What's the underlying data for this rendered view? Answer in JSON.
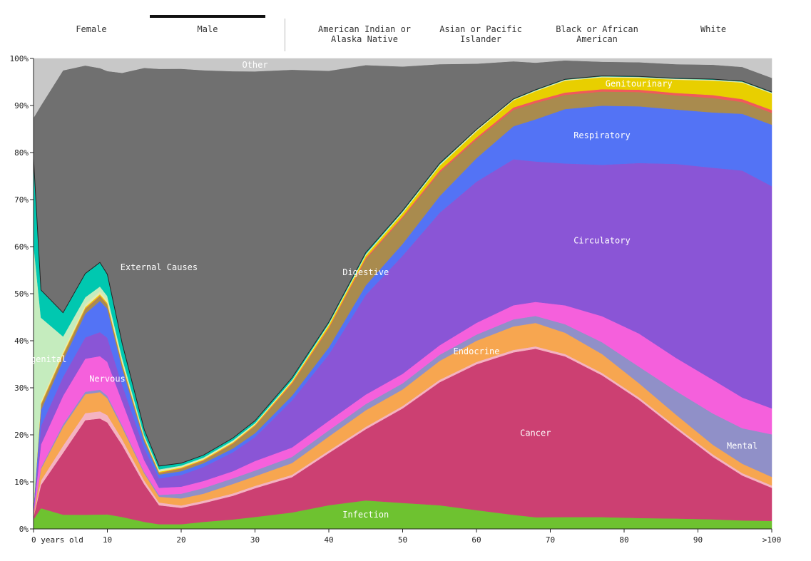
{
  "tabs": [
    {
      "label": "Female",
      "active": false
    },
    {
      "label": "Male",
      "active": true
    },
    {
      "label": "American Indian or\nAlaska Native",
      "active": false
    },
    {
      "label": "Asian or Pacific\nIslander",
      "active": false
    },
    {
      "label": "Black or African\nAmerican",
      "active": false
    },
    {
      "label": "White",
      "active": false
    }
  ],
  "chart_data": {
    "type": "area",
    "stacking": "percent",
    "xlabel": "",
    "ylabel": "",
    "x_ticks": [
      "0 years old",
      "10",
      "20",
      "30",
      "40",
      "50",
      "60",
      "70",
      "80",
      "90",
      ">100"
    ],
    "y_ticks": [
      "0%",
      "10%",
      "20%",
      "30%",
      "40%",
      "50%",
      "60%",
      "70%",
      "80%",
      "90%",
      "100%"
    ],
    "ylim": [
      0,
      100
    ],
    "xlim": [
      0,
      100
    ],
    "x": [
      0,
      1,
      4,
      7,
      9,
      10,
      12,
      15,
      17,
      20,
      23,
      27,
      30,
      35,
      40,
      45,
      50,
      55,
      60,
      65,
      68,
      72,
      77,
      82,
      87,
      92,
      96,
      100
    ],
    "series": [
      {
        "name": "Infection",
        "color": "#6ec230",
        "values": [
          2,
          4.5,
          3,
          3,
          3,
          3,
          2.5,
          1.5,
          1,
          1,
          1.5,
          2,
          2.5,
          3.5,
          5,
          6,
          5.5,
          5,
          4,
          3,
          2.5,
          2.5,
          2.5,
          2.3,
          2.2,
          2,
          1.8,
          1.7
        ]
      },
      {
        "name": "Cancer",
        "color": "#cc4072",
        "values": [
          0.5,
          5,
          13,
          20,
          20,
          19,
          15,
          8,
          4,
          3.5,
          4,
          5,
          6,
          7.5,
          11,
          15,
          20,
          26,
          31,
          34.5,
          36,
          34,
          30,
          25,
          19,
          13,
          9.5,
          7
        ]
      },
      {
        "name": "",
        "color": "#f4b3c2",
        "values": [
          0.2,
          1,
          1.5,
          1.5,
          1.5,
          1.5,
          1.2,
          0.8,
          0.6,
          0.5,
          0.5,
          0.5,
          0.5,
          0.5,
          0.5,
          0.5,
          0.5,
          0.5,
          0.5,
          0.5,
          0.5,
          0.5,
          0.5,
          0.5,
          0.5,
          0.5,
          0.5,
          0.5
        ]
      },
      {
        "name": "Endocrine",
        "color": "#f7a650",
        "values": [
          0.3,
          2.5,
          4,
          4,
          4,
          3.5,
          2.5,
          1.5,
          1.2,
          1.5,
          1.5,
          2,
          2,
          2.5,
          3,
          3.5,
          3.5,
          4,
          4.5,
          5,
          5,
          4.5,
          4,
          3,
          2.5,
          2,
          2,
          1.8
        ]
      },
      {
        "name": "Mental",
        "color": "#9090c8",
        "values": [
          0.1,
          0.3,
          0.5,
          0.5,
          0.5,
          0.5,
          0.4,
          0.3,
          0.4,
          1,
          1.2,
          1.2,
          1.2,
          1.3,
          1.3,
          1.3,
          1.3,
          1.3,
          1.3,
          1.5,
          1.5,
          1.8,
          2.5,
          3.5,
          5,
          6.5,
          7.5,
          9
        ]
      },
      {
        "name": "Nervous",
        "color": "#f560dc",
        "values": [
          0.5,
          5,
          6,
          7,
          7,
          7,
          5,
          2.5,
          1.5,
          1.5,
          1.5,
          1.5,
          2,
          2,
          2,
          2,
          2,
          2,
          2.5,
          3,
          3,
          4,
          5.5,
          7,
          7,
          7,
          6.5,
          5.5
        ]
      },
      {
        "name": "Circulatory",
        "color": "#8a55d6",
        "values": [
          0.5,
          4,
          4,
          4.5,
          5,
          5,
          3.5,
          2.5,
          2,
          2.5,
          3,
          4,
          5,
          10,
          14,
          21,
          25,
          28,
          30,
          31,
          30,
          30,
          32,
          36,
          41,
          44,
          48,
          47
        ]
      },
      {
        "name": "Respiratory",
        "color": "#5373f5",
        "values": [
          0.5,
          3.5,
          3.5,
          5,
          6.5,
          6,
          3.5,
          1.5,
          0.8,
          0.8,
          0.8,
          0.8,
          0.8,
          1,
          1.5,
          2,
          2.5,
          3.5,
          5,
          7,
          9,
          11.5,
          12.5,
          12,
          11.5,
          11.5,
          12,
          13
        ]
      },
      {
        "name": "Digestive",
        "color": "#a98b4e",
        "values": [
          0.2,
          1,
          1,
          1,
          1,
          0.8,
          0.6,
          0.4,
          0.3,
          0.5,
          0.5,
          1,
          1.5,
          2.5,
          4,
          5.5,
          5.5,
          5,
          4,
          3.5,
          3.5,
          3,
          3,
          3,
          3,
          3,
          2.5,
          2.5
        ]
      },
      {
        "name": "",
        "color": "#f05a5a",
        "values": [
          0,
          0.1,
          0.1,
          0.1,
          0.1,
          0.1,
          0.1,
          0.1,
          0.1,
          0.1,
          0.1,
          0.1,
          0.1,
          0.2,
          0.2,
          0.3,
          0.3,
          0.4,
          0.4,
          0.5,
          0.5,
          0.5,
          0.5,
          0.5,
          0.5,
          0.6,
          0.6,
          0.6
        ]
      },
      {
        "name": "Genitourinary",
        "color": "#e8cf00",
        "values": [
          0,
          0.3,
          0.3,
          0.3,
          0.3,
          0.3,
          0.3,
          0.2,
          0.2,
          0.2,
          0.2,
          0.2,
          0.2,
          0.3,
          0.5,
          0.5,
          0.7,
          1,
          1.3,
          1.5,
          2,
          2.5,
          2.5,
          2.5,
          2.8,
          3,
          3.5,
          3.5
        ]
      },
      {
        "name": "",
        "color": "#e8e8b0",
        "values": [
          0.2,
          0.6,
          0.6,
          0.6,
          0.6,
          0.6,
          0.5,
          0.3,
          0.3,
          0.2,
          0.2,
          0.2,
          0.2,
          0.2,
          0.2,
          0.2,
          0.2,
          0.2,
          0.2,
          0.2,
          0.2,
          0.2,
          0.2,
          0.2,
          0.2,
          0.2,
          0.2,
          0.2
        ]
      },
      {
        "name": "Congenital",
        "color": "#c5ecbe",
        "values": [
          55,
          18,
          3,
          1.5,
          1,
          0.8,
          0.6,
          0.3,
          0.2,
          0.2,
          0.2,
          0.2,
          0.1,
          0.1,
          0.1,
          0.1,
          0.1,
          0.1,
          0.1,
          0,
          0,
          0,
          0,
          0,
          0,
          0,
          0,
          0
        ]
      },
      {
        "name": "",
        "color": "#00c8b0",
        "values": [
          18,
          6,
          5,
          5,
          5,
          4.5,
          3,
          1.2,
          0.7,
          0.5,
          0.5,
          0.5,
          0.5,
          0.5,
          0.3,
          0.3,
          0.2,
          0.2,
          0.1,
          0.1,
          0.1,
          0.1,
          0.1,
          0.1,
          0.1,
          0.1,
          0.1,
          0.1
        ]
      },
      {
        "name": "External Causes",
        "color": "#707070",
        "values": [
          8.5,
          40,
          51,
          44,
          40.5,
          42,
          56.3,
          77,
          84,
          84,
          82,
          77.5,
          73,
          65.5,
          53,
          39.5,
          30.5,
          21,
          14,
          8,
          5.8,
          4,
          3,
          3,
          3,
          3,
          3,
          3
        ]
      },
      {
        "name": "Other",
        "color": "#c8c8c8",
        "values": [
          12.5,
          10.2,
          2.5,
          1.5,
          2,
          2.6,
          3,
          2,
          2.2,
          2.2,
          2.5,
          2.7,
          2.7,
          2.4,
          2.6,
          1.4,
          1.7,
          1.2,
          1.1,
          0.6,
          0.9,
          0.4,
          0.7,
          0.8,
          1.2,
          1.3,
          1.8,
          4.1
        ]
      }
    ],
    "labels": [
      {
        "text": "Other",
        "series": "Other"
      },
      {
        "text": "External Causes",
        "series": "External Causes"
      },
      {
        "text": "Congenital",
        "series": "Congenital"
      },
      {
        "text": "Nervous",
        "series": "Nervous"
      },
      {
        "text": "Digestive",
        "series": "Digestive"
      },
      {
        "text": "Circulatory",
        "series": "Circulatory"
      },
      {
        "text": "Respiratory",
        "series": "Respiratory"
      },
      {
        "text": "Genitourinary",
        "series": "Genitourinary"
      },
      {
        "text": "Endocrine",
        "series": "Endocrine"
      },
      {
        "text": "Cancer",
        "series": "Cancer"
      },
      {
        "text": "Mental",
        "series": "Mental"
      },
      {
        "text": "Infection",
        "series": "Infection"
      }
    ]
  }
}
